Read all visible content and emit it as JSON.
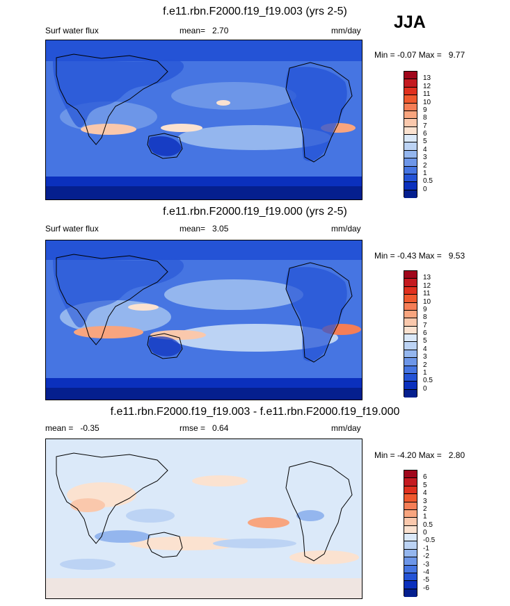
{
  "season": "JJA",
  "panels": [
    {
      "title": "f.e11.rbn.F2000.f19_f19.003 (yrs 2-5)",
      "left_label": "Surf water flux",
      "mid_label": "mean=",
      "mid_value": "2.70",
      "units": "mm/day",
      "min_label": "Min =",
      "min_value": "-0.07",
      "max_label": "Max =",
      "max_value": "9.77",
      "colorbar_labels": [
        "13",
        "12",
        "11",
        "10",
        "9",
        "8",
        "7",
        "6",
        "5",
        "4",
        "3",
        "2",
        "1",
        "0.5",
        "0"
      ],
      "colorbar_colors": [
        "#a0061b",
        "#c41a20",
        "#e0301e",
        "#f0592e",
        "#f57e56",
        "#f8a57f",
        "#fac8ac",
        "#fbe2d0",
        "#dbe9f9",
        "#bcd3f4",
        "#94b6ee",
        "#6d96e8",
        "#4675e2",
        "#2453d6",
        "#0b30bd",
        "#051f8e"
      ]
    },
    {
      "title": "f.e11.rbn.F2000.f19_f19.000 (yrs 2-5)",
      "left_label": "Surf water flux",
      "mid_label": "mean=",
      "mid_value": "3.05",
      "units": "mm/day",
      "min_label": "Min =",
      "min_value": "-0.43",
      "max_label": "Max =",
      "max_value": "9.53",
      "colorbar_labels": [
        "13",
        "12",
        "11",
        "10",
        "9",
        "8",
        "7",
        "6",
        "5",
        "4",
        "3",
        "2",
        "1",
        "0.5",
        "0"
      ],
      "colorbar_colors": [
        "#a0061b",
        "#c41a20",
        "#e0301e",
        "#f0592e",
        "#f57e56",
        "#f8a57f",
        "#fac8ac",
        "#fbe2d0",
        "#dbe9f9",
        "#bcd3f4",
        "#94b6ee",
        "#6d96e8",
        "#4675e2",
        "#2453d6",
        "#0b30bd",
        "#051f8e"
      ]
    },
    {
      "title": "f.e11.rbn.F2000.f19_f19.003 - f.e11.rbn.F2000.f19_f19.000",
      "left_label": "mean =",
      "left_value": "-0.35",
      "mid_label": "rmse =",
      "mid_value": "0.64",
      "units": "mm/day",
      "min_label": "Min =",
      "min_value": "-4.20",
      "max_label": "Max =",
      "max_value": "2.80",
      "colorbar_labels": [
        "6",
        "5",
        "4",
        "3",
        "2",
        "1",
        "0.5",
        "0",
        "-0.5",
        "-1",
        "-2",
        "-3",
        "-4",
        "-5",
        "-6"
      ],
      "colorbar_colors": [
        "#a0061b",
        "#c41a20",
        "#e0301e",
        "#f0592e",
        "#f57e56",
        "#f8a57f",
        "#fac8ac",
        "#fbe2d0",
        "#dbe9f9",
        "#bcd3f4",
        "#94b6ee",
        "#6d96e8",
        "#4675e2",
        "#2453d6",
        "#0b30bd",
        "#051f8e"
      ]
    }
  ]
}
